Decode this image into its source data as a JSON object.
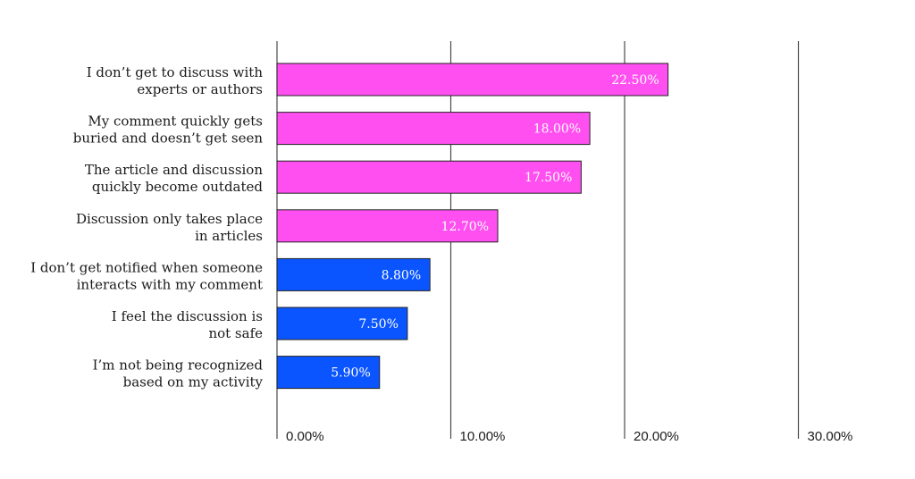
{
  "chart_data": {
    "type": "bar",
    "orientation": "horizontal",
    "categories": [
      [
        "I don’t get to discuss with",
        "experts or authors"
      ],
      [
        "My comment quickly gets",
        "buried and doesn’t get seen"
      ],
      [
        "The article and discussion",
        "quickly become outdated"
      ],
      [
        "Discussion only takes place",
        "in articles"
      ],
      [
        "I don’t get notified when someone",
        "interacts with my comment"
      ],
      [
        "I feel the discussion is",
        "not safe"
      ],
      [
        "I’m not being recognized",
        "based on my activity"
      ]
    ],
    "values": [
      22.5,
      18.0,
      17.5,
      12.7,
      8.8,
      7.5,
      5.9
    ],
    "data_labels": [
      "22.50%",
      "18.00%",
      "17.50%",
      "12.70%",
      "8.80%",
      "7.50%",
      "5.90%"
    ],
    "bar_colors": [
      "#ff4ff0",
      "#ff4ff0",
      "#ff4ff0",
      "#ff4ff0",
      "#0a55ff",
      "#0a55ff",
      "#0a55ff"
    ],
    "x_ticks": [
      0,
      10,
      20,
      30
    ],
    "x_tick_labels": [
      "0.00%",
      "10.00%",
      "20.00%",
      "30.00%"
    ],
    "xlim": [
      0,
      30
    ],
    "grid": true,
    "title": "",
    "xlabel": "",
    "ylabel": ""
  }
}
